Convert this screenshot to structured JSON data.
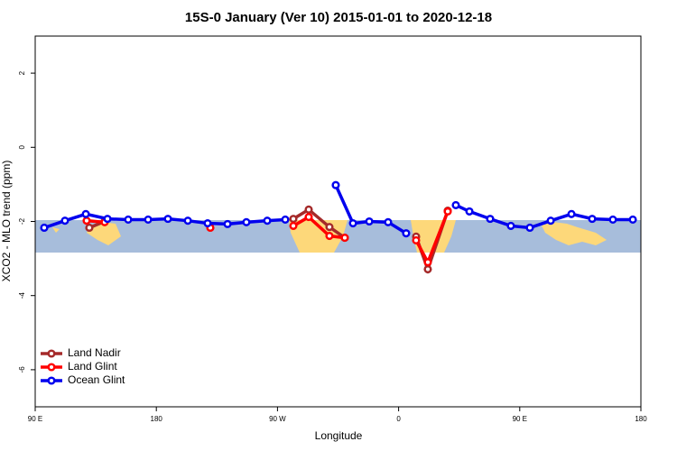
{
  "chart_data": {
    "type": "line",
    "title": "15S-0 January (Ver 10)   2015-01-01 to 2020-12-18",
    "xlabel": "Longitude",
    "ylabel": "XCO2 - MLO trend (ppm)",
    "xlim": [
      90,
      540
    ],
    "ylim": [
      -7,
      3
    ],
    "xticks": [
      {
        "value": 90,
        "label": "90 E"
      },
      180,
      {
        "value": 270,
        "label": "90 W"
      },
      {
        "value": 360,
        "label": "0"
      },
      {
        "value": 450,
        "label": "90 E"
      },
      {
        "value": 540,
        "label": "180"
      }
    ],
    "yticks": [
      -6,
      -4,
      -2,
      0,
      2
    ],
    "legend": "bottom-left",
    "series": [
      {
        "name": "Land Nadir",
        "color": "#a52a2a",
        "x": [
          130.2,
          141.6,
          null,
          281.8,
          293.2,
          308.6,
          320.0,
          null,
          373.0,
          381.7,
          396.5
        ],
        "values": [
          -2.17,
          -2.0,
          null,
          -1.93,
          -1.68,
          -2.15,
          -2.44,
          null,
          -2.41,
          -3.29,
          -1.71
        ]
      },
      {
        "name": "Land Glint",
        "color": "#ff0000",
        "x": [
          128.2,
          141.6,
          null,
          220.1,
          null,
          281.8,
          293.2,
          308.6,
          320.0,
          null,
          373.0,
          381.7,
          396.5
        ],
        "values": [
          -1.98,
          -2.02,
          null,
          -2.17,
          null,
          -2.12,
          -1.88,
          -2.39,
          -2.44,
          null,
          -2.51,
          -3.1,
          -1.73
        ]
      },
      {
        "name": "Ocean Glint",
        "color": "#0000ee",
        "x": [
          96.7,
          112.1,
          127.6,
          143.7,
          159.1,
          173.9,
          188.6,
          203.4,
          218.1,
          232.9,
          246.9,
          262.4,
          275.8,
          null,
          313.3,
          326.1,
          338.2,
          352.2,
          365.6,
          null,
          402.5,
          412.6,
          428.0,
          443.4,
          457.5,
          473.0,
          488.4,
          503.8,
          519.2,
          534.0
        ],
        "values": [
          -2.17,
          -1.98,
          -1.8,
          -1.93,
          -1.95,
          -1.95,
          -1.93,
          -1.98,
          -2.05,
          -2.07,
          -2.02,
          -1.98,
          -1.95,
          null,
          -1.02,
          -2.05,
          -2.0,
          -2.02,
          -2.32,
          null,
          -1.56,
          -1.73,
          -1.93,
          -2.12,
          -2.17,
          -1.98,
          -1.8,
          -1.93,
          -1.95,
          -1.95
        ]
      }
    ]
  }
}
